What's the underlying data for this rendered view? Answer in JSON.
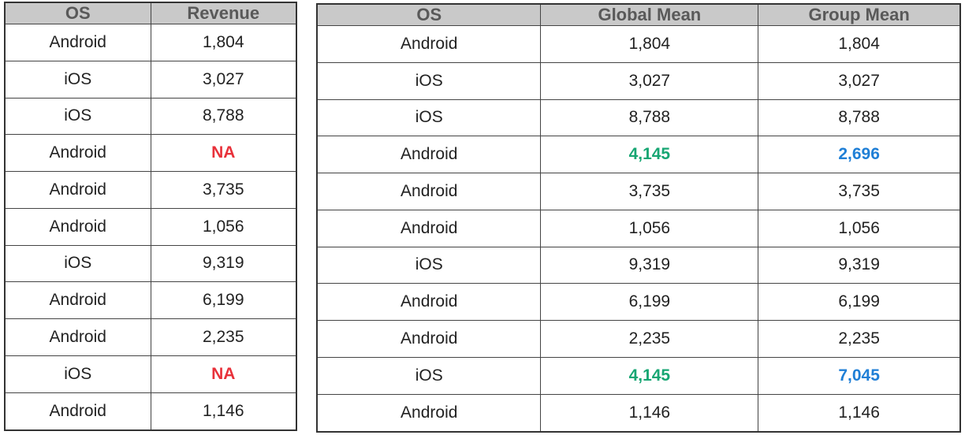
{
  "colors": {
    "header_bg": "#c9c9c9",
    "header_text": "#595959",
    "missing": "#e8313a",
    "global_mean": "#17a673",
    "group_mean": "#1f7fd6"
  },
  "left_table": {
    "headers": [
      "OS",
      "Revenue"
    ],
    "rows": [
      [
        "Android",
        "1,804"
      ],
      [
        "iOS",
        "3,027"
      ],
      [
        "iOS",
        "8,788"
      ],
      [
        "Android",
        "NA"
      ],
      [
        "Android",
        "3,735"
      ],
      [
        "Android",
        "1,056"
      ],
      [
        "iOS",
        "9,319"
      ],
      [
        "Android",
        "6,199"
      ],
      [
        "Android",
        "2,235"
      ],
      [
        "iOS",
        "NA"
      ],
      [
        "Android",
        "1,146"
      ]
    ],
    "highlight_rows": [
      3,
      9
    ]
  },
  "right_table": {
    "headers": [
      "OS",
      "Global Mean",
      "Group Mean"
    ],
    "rows": [
      [
        "Android",
        "1,804",
        "1,804"
      ],
      [
        "iOS",
        "3,027",
        "3,027"
      ],
      [
        "iOS",
        "8,788",
        "8,788"
      ],
      [
        "Android",
        "4,145",
        "2,696"
      ],
      [
        "Android",
        "3,735",
        "3,735"
      ],
      [
        "Android",
        "1,056",
        "1,056"
      ],
      [
        "iOS",
        "9,319",
        "9,319"
      ],
      [
        "Android",
        "6,199",
        "6,199"
      ],
      [
        "Android",
        "2,235",
        "2,235"
      ],
      [
        "iOS",
        "4,145",
        "7,045"
      ],
      [
        "Android",
        "1,146",
        "1,146"
      ]
    ],
    "highlight_rows": [
      3,
      9
    ]
  }
}
